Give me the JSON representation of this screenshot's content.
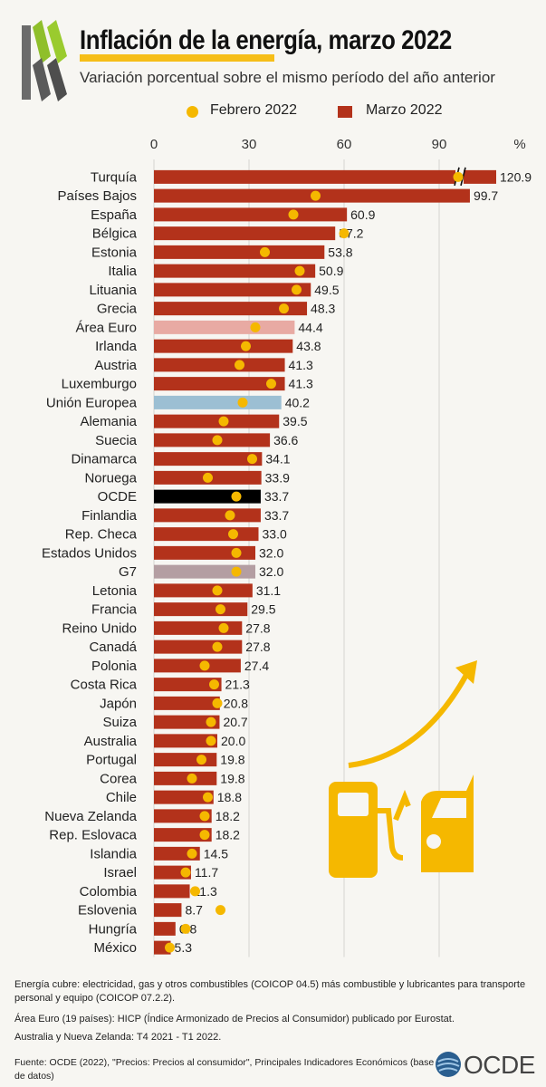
{
  "header": {
    "title": "Inflación de la energía, marzo 2022",
    "subtitle": "Variación porcentual sobre el mismo período del año anterior"
  },
  "legend": {
    "feb_label": "Febrero 2022",
    "mar_label": "Marzo 2022"
  },
  "colors": {
    "bar": "#b3321b",
    "dot": "#f5b800",
    "euro_area": "#e8aaa3",
    "eu": "#9cbfd3",
    "oecd": "#000000",
    "g7": "#b49ea2",
    "accent": "#f5b800"
  },
  "chart_data": {
    "type": "bar",
    "orientation": "horizontal",
    "unit": "%",
    "xlim": [
      0,
      110
    ],
    "xticks": [
      0,
      30,
      60,
      90
    ],
    "grid": true,
    "legend_position": "top",
    "categories": [
      "Turquía",
      "Países Bajos",
      "España",
      "Bélgica",
      "Estonia",
      "Italia",
      "Lituania",
      "Grecia",
      "Área Euro",
      "Irlanda",
      "Austria",
      "Luxemburgo",
      "Unión Europea",
      "Alemania",
      "Suecia",
      "Dinamarca",
      "Noruega",
      "OCDE",
      "Finlandia",
      "Rep. Checa",
      "Estados Unidos",
      "G7",
      "Letonia",
      "Francia",
      "Reino Unido",
      "Canadá",
      "Polonia",
      "Costa Rica",
      "Japón",
      "Suiza",
      "Australia",
      "Portugal",
      "Corea",
      "Chile",
      "Nueva Zelanda",
      "Rep. Eslovaca",
      "Islandia",
      "Israel",
      "Colombia",
      "Eslovenia",
      "Hungría",
      "México"
    ],
    "series": [
      {
        "name": "Marzo 2022",
        "values": [
          120.9,
          99.7,
          60.9,
          57.2,
          53.8,
          50.9,
          49.5,
          48.3,
          44.4,
          43.8,
          41.3,
          41.3,
          40.2,
          39.5,
          36.6,
          34.1,
          33.9,
          33.7,
          33.7,
          33.0,
          32.0,
          32.0,
          31.1,
          29.5,
          27.8,
          27.8,
          27.4,
          21.3,
          20.8,
          20.7,
          20.0,
          19.8,
          19.8,
          18.8,
          18.2,
          18.2,
          14.5,
          11.7,
          11.3,
          8.7,
          6.8,
          5.3
        ],
        "labels": [
          "120.9",
          "99.7",
          "60.9",
          "57.2",
          "53.8",
          "50.9",
          "49.5",
          "48.3",
          "44.4",
          "43.8",
          "41.3",
          "41.3",
          "40.2",
          "39.5",
          "36.6",
          "34.1",
          "33.9",
          "33.7",
          "33.7",
          "33.0",
          "32.0",
          "32.0",
          "31.1",
          "29.5",
          "27.8",
          "27.8",
          "27.4",
          "21.3",
          "20.8",
          "20.7",
          "20.0",
          "19.8",
          "19.8",
          "18.8",
          "18.2",
          "18.2",
          "14.5",
          "11.7",
          "11.3",
          "8.7",
          "6.8",
          "5.3"
        ]
      },
      {
        "name": "Febrero 2022",
        "values": [
          96,
          51,
          44,
          60,
          35,
          46,
          45,
          41,
          32,
          29,
          27,
          37,
          28,
          22,
          20,
          31,
          17,
          26,
          24,
          25,
          26,
          26,
          20,
          21,
          22,
          20,
          16,
          19,
          20,
          18,
          18,
          15,
          12,
          17,
          16,
          16,
          12,
          10,
          13,
          21,
          10,
          5
        ]
      }
    ],
    "highlight_colors": {
      "Área Euro": "#e8aaa3",
      "Unión Europea": "#9cbfd3",
      "OCDE": "#000000",
      "G7": "#b49ea2"
    },
    "axis_break_category": "Turquía"
  },
  "footer": {
    "note1": "Energía cubre: electricidad, gas y otros combustibles (COICOP 04.5) más combustible y lubricantes para transporte personal y equipo (COICOP 07.2.2).",
    "note2": "Área Euro (19 países): HICP (Índice Armonizado de Precios al Consumidor) publicado por Eurostat.",
    "note3": "Australia y Nueva Zelanda: T4 2021 - T1 2022.",
    "source": "Fuente: OCDE (2022), \"Precios: Precios al consumidor\", Principales Indicadores Económicos (base de datos)",
    "brand": "OCDE"
  }
}
